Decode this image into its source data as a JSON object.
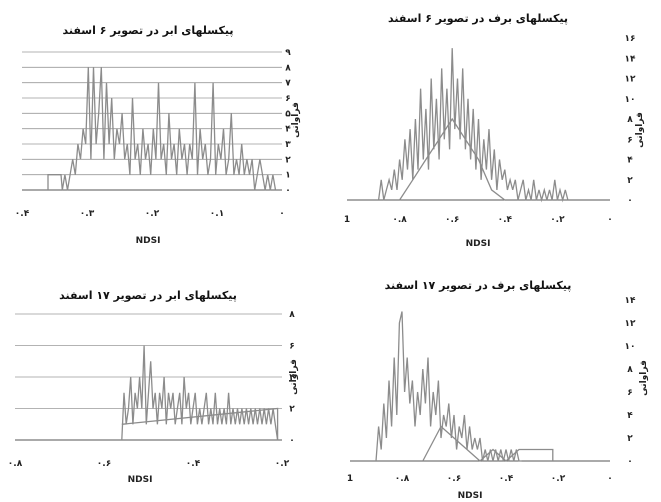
{
  "chart_data": [
    {
      "type": "line",
      "title": "پیکسلهای ابر در تصویر ۶ اسفند",
      "xlabel": "NDSI",
      "ylabel": "فراوانی",
      "xlim": [
        0,
        0.4
      ],
      "x_reversed": true,
      "ylim": [
        0,
        9
      ],
      "grid": true,
      "x_ticks": [
        {
          "value": 0.4,
          "label": "۰.۴"
        },
        {
          "value": 0.3,
          "label": "۰.۳"
        },
        {
          "value": 0.2,
          "label": "۰.۲"
        },
        {
          "value": 0.1,
          "label": "۰.۱"
        },
        {
          "value": 0,
          "label": "۰"
        }
      ],
      "y_ticks": [
        {
          "value": 0,
          "label": "۰"
        },
        {
          "value": 1,
          "label": "۱"
        },
        {
          "value": 2,
          "label": "۲"
        },
        {
          "value": 3,
          "label": "۳"
        },
        {
          "value": 4,
          "label": "۴"
        },
        {
          "value": 5,
          "label": "۵"
        },
        {
          "value": 6,
          "label": "۶"
        },
        {
          "value": 7,
          "label": "۷"
        },
        {
          "value": 8,
          "label": "۸"
        },
        {
          "value": 9,
          "label": "۹"
        }
      ],
      "series": [
        {
          "x": [
            0.36,
            0.36,
            0.34,
            0.338,
            0.334,
            0.33,
            0.326,
            0.322,
            0.318,
            0.314,
            0.31,
            0.306,
            0.302,
            0.298,
            0.294,
            0.29,
            0.286,
            0.282,
            0.278,
            0.274,
            0.27,
            0.266,
            0.262,
            0.258,
            0.254,
            0.25,
            0.246,
            0.242,
            0.238,
            0.234,
            0.23,
            0.226,
            0.222,
            0.218,
            0.214,
            0.21,
            0.206,
            0.202,
            0.198,
            0.194,
            0.19,
            0.186,
            0.182,
            0.178,
            0.174,
            0.17,
            0.166,
            0.162,
            0.158,
            0.154,
            0.15,
            0.146,
            0.142,
            0.138,
            0.134,
            0.13,
            0.126,
            0.122,
            0.118,
            0.114,
            0.11,
            0.106,
            0.102,
            0.098,
            0.094,
            0.09,
            0.086,
            0.082,
            0.078,
            0.074,
            0.07,
            0.066,
            0.062,
            0.058,
            0.054,
            0.05,
            0.046,
            0.042,
            0.038,
            0.034,
            0.03,
            0.026,
            0.022,
            0.018,
            0.014,
            0.01
          ],
          "y": [
            0,
            1,
            1,
            0,
            1,
            0,
            1,
            2,
            1,
            3,
            2,
            4,
            3,
            8,
            2,
            8,
            3,
            5,
            8,
            2,
            7,
            3,
            6,
            2,
            4,
            3,
            5,
            2,
            3,
            1,
            6,
            2,
            3,
            1,
            4,
            2,
            3,
            1,
            4,
            2,
            7,
            2,
            3,
            1,
            5,
            2,
            3,
            1,
            4,
            2,
            3,
            1,
            3,
            2,
            7,
            1,
            4,
            2,
            3,
            1,
            2,
            7,
            1,
            3,
            2,
            4,
            1,
            2,
            5,
            1,
            2,
            1,
            3,
            1,
            2,
            1,
            2,
            0,
            1,
            2,
            1,
            0,
            1,
            0,
            1,
            0
          ]
        }
      ]
    },
    {
      "type": "line",
      "title": "پیکسلهای برف در تصویر ۶ اسفند",
      "xlabel": "NDSI",
      "ylabel": "فراوانی",
      "xlim": [
        0,
        1
      ],
      "x_reversed": true,
      "ylim": [
        0,
        16
      ],
      "grid": false,
      "x_ticks": [
        {
          "value": 1,
          "label": "1"
        },
        {
          "value": 0.8,
          "label": "۰.۸"
        },
        {
          "value": 0.6,
          "label": "۰.۶"
        },
        {
          "value": 0.4,
          "label": "۰.۴"
        },
        {
          "value": 0.2,
          "label": "۰.۲"
        },
        {
          "value": 0,
          "label": "۰"
        }
      ],
      "y_ticks": [
        {
          "value": 0,
          "label": "۰"
        },
        {
          "value": 2,
          "label": "۲"
        },
        {
          "value": 4,
          "label": "۴"
        },
        {
          "value": 6,
          "label": "۶"
        },
        {
          "value": 8,
          "label": "۸"
        },
        {
          "value": 10,
          "label": "۱۰"
        },
        {
          "value": 12,
          "label": "۱۲"
        },
        {
          "value": 14,
          "label": "۱۴"
        },
        {
          "value": 16,
          "label": "۱۶"
        }
      ],
      "series": [
        {
          "x": [
            0.88,
            0.87,
            0.86,
            0.85,
            0.84,
            0.83,
            0.82,
            0.81,
            0.8,
            0.79,
            0.78,
            0.77,
            0.76,
            0.75,
            0.74,
            0.73,
            0.72,
            0.71,
            0.7,
            0.69,
            0.68,
            0.67,
            0.66,
            0.65,
            0.64,
            0.63,
            0.62,
            0.61,
            0.6,
            0.59,
            0.58,
            0.57,
            0.56,
            0.55,
            0.54,
            0.53,
            0.52,
            0.51,
            0.5,
            0.49,
            0.48,
            0.47,
            0.46,
            0.45,
            0.44,
            0.43,
            0.42,
            0.41,
            0.4,
            0.39,
            0.38,
            0.37,
            0.36,
            0.35,
            0.34,
            0.33,
            0.32,
            0.31,
            0.3,
            0.29,
            0.28,
            0.27,
            0.26,
            0.25,
            0.24,
            0.23,
            0.22,
            0.21,
            0.2,
            0.19,
            0.18,
            0.17,
            0.16
          ],
          "y": [
            0,
            2,
            0,
            1,
            2,
            1,
            3,
            1,
            4,
            2,
            6,
            3,
            7,
            2,
            8,
            3,
            11,
            4,
            9,
            3,
            12,
            5,
            10,
            4,
            13,
            6,
            11,
            5,
            15,
            7,
            12,
            6,
            13,
            5,
            10,
            4,
            9,
            3,
            8,
            2,
            6,
            3,
            7,
            2,
            5,
            1,
            4,
            2,
            3,
            1,
            2,
            1,
            2,
            0,
            1,
            2,
            0,
            1,
            0,
            2,
            0,
            1,
            0,
            1,
            0,
            1,
            0,
            2,
            0,
            1,
            0,
            1,
            0
          ]
        },
        {
          "x": [
            0.8,
            0.75,
            0.7,
            0.65,
            0.6,
            0.55,
            0.5,
            0.45,
            0.4
          ],
          "y": [
            0,
            2,
            4,
            6,
            8,
            6,
            4,
            1,
            0
          ]
        }
      ]
    },
    {
      "type": "line",
      "title": "پیکسلهای ابر در تصویر ۱۷ اسفند",
      "xlabel": "NDSI",
      "ylabel": "فراوانی",
      "xlim": [
        0.2,
        0.8
      ],
      "x_reversed": true,
      "ylim": [
        0,
        8
      ],
      "grid": true,
      "x_ticks": [
        {
          "value": 0.8,
          "label": "۰.۸"
        },
        {
          "value": 0.6,
          "label": "۰.۶"
        },
        {
          "value": 0.4,
          "label": "۰.۴"
        },
        {
          "value": 0.2,
          "label": "۰.۲"
        }
      ],
      "y_ticks": [
        {
          "value": 0,
          "label": "۰"
        },
        {
          "value": 2,
          "label": "۲"
        },
        {
          "value": 4,
          "label": "۴"
        },
        {
          "value": 6,
          "label": "۶"
        },
        {
          "value": 8,
          "label": "۸"
        }
      ],
      "series": [
        {
          "x": [
            0.56,
            0.555,
            0.55,
            0.545,
            0.54,
            0.535,
            0.53,
            0.525,
            0.52,
            0.515,
            0.51,
            0.505,
            0.5,
            0.495,
            0.49,
            0.485,
            0.48,
            0.475,
            0.47,
            0.465,
            0.46,
            0.455,
            0.45,
            0.445,
            0.44,
            0.435,
            0.43,
            0.425,
            0.42,
            0.415,
            0.41,
            0.405,
            0.4,
            0.395,
            0.39,
            0.385,
            0.38,
            0.375,
            0.37,
            0.365,
            0.36,
            0.355,
            0.35,
            0.345,
            0.34,
            0.335,
            0.33,
            0.325,
            0.32,
            0.315,
            0.31,
            0.305,
            0.3,
            0.295,
            0.29,
            0.285,
            0.28,
            0.275,
            0.27,
            0.265,
            0.26,
            0.255,
            0.25,
            0.245,
            0.24,
            0.235,
            0.23,
            0.225,
            0.22,
            0.215,
            0.21
          ],
          "y": [
            0,
            3,
            1,
            2,
            4,
            1,
            3,
            2,
            4,
            2,
            6,
            1,
            3,
            5,
            2,
            3,
            1,
            3,
            2,
            4,
            1,
            3,
            2,
            3,
            1,
            2,
            3,
            1,
            4,
            2,
            3,
            1,
            2,
            3,
            1,
            2,
            1,
            2,
            3,
            1,
            2,
            1,
            3,
            1,
            2,
            1,
            2,
            1,
            3,
            1,
            2,
            1,
            2,
            1,
            2,
            1,
            2,
            1,
            2,
            1,
            2,
            1,
            2,
            1,
            2,
            1,
            2,
            1,
            2,
            1,
            0
          ]
        },
        {
          "x": [
            0.56,
            0.21,
            0.21
          ],
          "y": [
            1,
            2,
            0
          ]
        }
      ]
    },
    {
      "type": "line",
      "title": "پیکسلهای برف در تصویر ۱۷ اسفند",
      "xlabel": "NDSI",
      "ylabel": "فراوانی",
      "xlim": [
        0,
        1
      ],
      "x_reversed": true,
      "ylim": [
        0,
        14
      ],
      "grid": false,
      "x_ticks": [
        {
          "value": 1,
          "label": "1"
        },
        {
          "value": 0.8,
          "label": "۰.۸"
        },
        {
          "value": 0.6,
          "label": "۰.۶"
        },
        {
          "value": 0.4,
          "label": "۰.۴"
        },
        {
          "value": 0.2,
          "label": "۰.۲"
        },
        {
          "value": 0,
          "label": "۰"
        }
      ],
      "y_ticks": [
        {
          "value": 0,
          "label": "۰"
        },
        {
          "value": 2,
          "label": "۲"
        },
        {
          "value": 4,
          "label": "۴"
        },
        {
          "value": 6,
          "label": "۶"
        },
        {
          "value": 8,
          "label": "۸"
        },
        {
          "value": 10,
          "label": "۱۰"
        },
        {
          "value": 12,
          "label": "۱۲"
        },
        {
          "value": 14,
          "label": "۱۴"
        }
      ],
      "series": [
        {
          "x": [
            0.9,
            0.89,
            0.88,
            0.87,
            0.86,
            0.85,
            0.84,
            0.83,
            0.82,
            0.81,
            0.8,
            0.79,
            0.78,
            0.77,
            0.76,
            0.75,
            0.74,
            0.73,
            0.72,
            0.71,
            0.7,
            0.69,
            0.68,
            0.67,
            0.66,
            0.65,
            0.64,
            0.63,
            0.62,
            0.61,
            0.6,
            0.59,
            0.58,
            0.57,
            0.56,
            0.55,
            0.54,
            0.53,
            0.52,
            0.51,
            0.5,
            0.49,
            0.48,
            0.47,
            0.46,
            0.45,
            0.44,
            0.43,
            0.42,
            0.41,
            0.4,
            0.39,
            0.38,
            0.37,
            0.36,
            0.35,
            0.34
          ],
          "y": [
            0,
            3,
            1,
            5,
            2,
            7,
            3,
            9,
            4,
            12,
            13,
            6,
            9,
            5,
            7,
            3,
            6,
            4,
            8,
            5,
            9,
            3,
            6,
            4,
            7,
            2,
            4,
            3,
            5,
            2,
            4,
            1,
            3,
            2,
            4,
            1,
            3,
            1,
            2,
            1,
            2,
            0,
            1,
            0,
            1,
            0,
            1,
            0,
            1,
            0,
            1,
            0,
            1,
            0,
            1,
            0,
            0
          ]
        },
        {
          "x": [
            0.72,
            0.65,
            0.6,
            0.55,
            0.5,
            0.45,
            0.4,
            0.35,
            0.3,
            0.25,
            0.22,
            0.22
          ],
          "y": [
            0,
            3,
            2,
            1,
            0,
            1,
            0,
            1,
            1,
            1,
            1,
            0
          ]
        }
      ]
    }
  ]
}
